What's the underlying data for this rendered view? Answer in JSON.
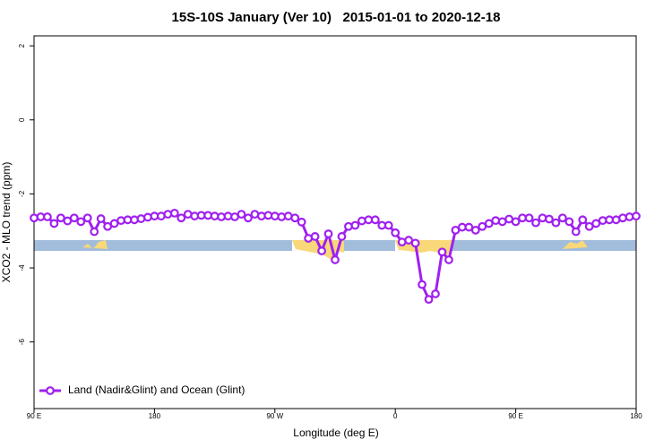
{
  "chart_data": {
    "type": "line",
    "title": "15S-10S January (Ver 10)   2015-01-01 to 2020-12-18",
    "x_label": "Longitude (deg E)",
    "y_label": "XCO2 - MLO trend (ppm)",
    "x": [
      90,
      95,
      100,
      105,
      110,
      115,
      120,
      125,
      130,
      135,
      140,
      145,
      150,
      155,
      160,
      165,
      170,
      175,
      180,
      185,
      190,
      195,
      200,
      205,
      210,
      215,
      220,
      225,
      230,
      235,
      240,
      245,
      250,
      255,
      260,
      265,
      270,
      275,
      280,
      285,
      290,
      295,
      300,
      305,
      310,
      315,
      320,
      325,
      330,
      335,
      340,
      345,
      350,
      355,
      360,
      365,
      370,
      375,
      380,
      385,
      390,
      395,
      400,
      405,
      410,
      415,
      420,
      425,
      430,
      435,
      440,
      445,
      450,
      455,
      460,
      465,
      470,
      475,
      480,
      485,
      490,
      495,
      500,
      505,
      510,
      515,
      520,
      525,
      530,
      535,
      540
    ],
    "series": [
      {
        "name": "Land (Nadir&Glint) and Ocean (Glint)",
        "color": "#a020f0",
        "values": [
          -2.65,
          -2.62,
          -2.62,
          -2.8,
          -2.65,
          -2.73,
          -2.65,
          -2.75,
          -2.65,
          -3.02,
          -2.67,
          -2.88,
          -2.8,
          -2.72,
          -2.7,
          -2.7,
          -2.67,
          -2.63,
          -2.6,
          -2.6,
          -2.55,
          -2.52,
          -2.65,
          -2.55,
          -2.6,
          -2.58,
          -2.58,
          -2.6,
          -2.62,
          -2.6,
          -2.62,
          -2.55,
          -2.65,
          -2.55,
          -2.6,
          -2.58,
          -2.6,
          -2.62,
          -2.6,
          -2.65,
          -2.76,
          -3.2,
          -3.15,
          -3.54,
          -3.08,
          -3.78,
          -3.15,
          -2.88,
          -2.85,
          -2.73,
          -2.7,
          -2.7,
          -2.85,
          -2.85,
          -3.05,
          -3.3,
          -3.25,
          -3.33,
          -4.45,
          -4.85,
          -4.7,
          -3.57,
          -3.78,
          -2.98,
          -2.9,
          -2.9,
          -2.98,
          -2.88,
          -2.8,
          -2.72,
          -2.75,
          -2.68,
          -2.75,
          -2.65,
          -2.65,
          -2.78,
          -2.65,
          -2.68,
          -2.78,
          -2.65,
          -2.75,
          -3.02,
          -2.7,
          -2.88,
          -2.8,
          -2.72,
          -2.7,
          -2.7,
          -2.65,
          -2.62,
          -2.6
        ]
      }
    ],
    "xlim": [
      90,
      540
    ],
    "xticks": [
      {
        "value": 90,
        "label": "90 E"
      },
      {
        "value": 180,
        "label": "180"
      },
      {
        "value": 270,
        "label": "90 W"
      },
      {
        "value": 360,
        "label": "0"
      },
      {
        "value": 450,
        "label": "90 E"
      },
      {
        "value": 540,
        "label": "180"
      }
    ],
    "ylim": [
      -7.8,
      2.27
    ],
    "yticks": [
      -6,
      -4,
      -2,
      0,
      2
    ],
    "legend": "bottom-left"
  }
}
